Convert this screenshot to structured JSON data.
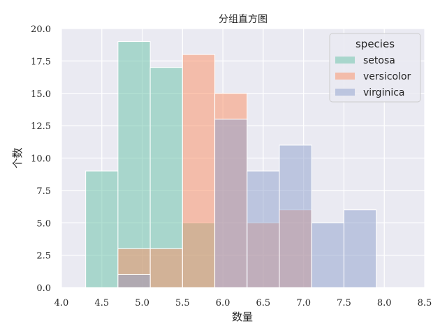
{
  "chart_data": {
    "type": "bar",
    "title": "分组直方图",
    "xlabel": "数量",
    "ylabel": "个数",
    "xlim": [
      4.0,
      8.5
    ],
    "ylim": [
      0,
      20
    ],
    "xticks": [
      "4.0",
      "4.5",
      "5.0",
      "5.5",
      "6.0",
      "6.5",
      "7.0",
      "7.5",
      "8.0",
      "8.5"
    ],
    "yticks": [
      "0.0",
      "2.5",
      "5.0",
      "7.5",
      "10.0",
      "12.5",
      "15.0",
      "17.5",
      "20.0"
    ],
    "bin_edges": [
      4.3,
      4.7,
      5.1,
      5.5,
      5.9,
      6.3,
      6.7,
      7.1,
      7.5,
      7.9
    ],
    "grid": true,
    "background": "#eaeaf2",
    "legend": {
      "title": "species",
      "position": "top-right"
    },
    "series": [
      {
        "name": "setosa",
        "color": "#66c2a5",
        "values": [
          9,
          19,
          17,
          5,
          0,
          0,
          0,
          0,
          0
        ]
      },
      {
        "name": "versicolor",
        "color": "#fc8d62",
        "values": [
          0,
          3,
          3,
          18,
          15,
          5,
          6,
          0,
          0
        ]
      },
      {
        "name": "virginica",
        "color": "#8da0cb",
        "values": [
          0,
          1,
          0,
          0,
          13,
          9,
          11,
          5,
          6
        ]
      }
    ]
  }
}
